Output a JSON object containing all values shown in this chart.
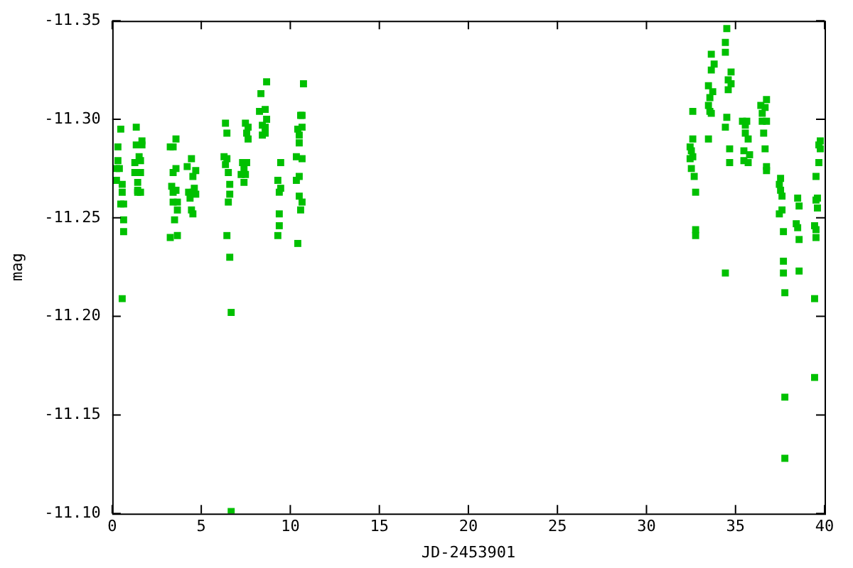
{
  "chart_data": {
    "type": "scatter",
    "xlabel": "JD-2453901",
    "ylabel": "mag",
    "xlim": [
      0,
      40
    ],
    "xticks": [
      0,
      5,
      10,
      15,
      20,
      25,
      30,
      35,
      40
    ],
    "ylim": [
      -11.1,
      -11.35
    ],
    "yticks": [
      {
        "value": -11.1,
        "label": "-11.10"
      },
      -11.15,
      {
        "value": -11.2,
        "label": "-11.20"
      },
      -11.25,
      {
        "value": -11.3,
        "label": "-11.30"
      },
      -11.35
    ],
    "grid": false,
    "legend": false,
    "marker": "square",
    "series": [
      {
        "color": "#00c000",
        "x": [
          0.48,
          0.32,
          0.32,
          0.24,
          0.4,
          0.24,
          0.56,
          0.56,
          0.48,
          0.64,
          0.64,
          0.64,
          0.56,
          1.35,
          1.35,
          1.67,
          1.67,
          1.27,
          1.51,
          1.59,
          1.27,
          1.59,
          1.43,
          1.43,
          1.59,
          1.43,
          3.58,
          3.26,
          3.42,
          3.58,
          3.42,
          3.34,
          3.58,
          3.42,
          3.42,
          3.66,
          3.66,
          3.5,
          3.26,
          3.66,
          4.45,
          4.21,
          4.69,
          4.53,
          4.29,
          4.61,
          4.53,
          4.37,
          4.69,
          4.45,
          4.53,
          6.36,
          6.44,
          6.28,
          6.44,
          6.36,
          6.52,
          6.6,
          6.6,
          6.52,
          6.44,
          6.6,
          6.68,
          6.68,
          7.48,
          7.63,
          7.55,
          7.63,
          7.32,
          7.55,
          7.4,
          7.24,
          7.48,
          7.4,
          8.67,
          8.35,
          8.27,
          8.59,
          8.67,
          8.43,
          8.59,
          8.43,
          8.59,
          9.46,
          9.3,
          9.38,
          9.46,
          9.38,
          9.38,
          9.3,
          10.74,
          10.58,
          10.66,
          10.66,
          10.42,
          10.5,
          10.5,
          10.34,
          10.66,
          10.5,
          10.34,
          10.5,
          10.66,
          10.58,
          10.42,
          32.6,
          32.6,
          32.45,
          32.52,
          32.6,
          32.45,
          32.52,
          32.68,
          32.76,
          32.76,
          32.76,
          33.64,
          33.8,
          33.64,
          33.48,
          33.72,
          33.56,
          33.48,
          33.56,
          33.64,
          33.48,
          34.51,
          34.43,
          34.43,
          34.75,
          34.59,
          34.75,
          34.59,
          34.51,
          34.43,
          34.67,
          34.67,
          34.43,
          36.74,
          36.42,
          36.66,
          36.5,
          36.5,
          36.74,
          36.58,
          36.66,
          36.74,
          36.74,
          35.39,
          35.63,
          35.55,
          35.55,
          35.71,
          35.47,
          35.79,
          35.47,
          35.71,
          37.53,
          37.46,
          37.53,
          37.61,
          37.46,
          37.61,
          37.69,
          37.69,
          37.69,
          37.77,
          37.77,
          37.77,
          38.49,
          38.57,
          38.41,
          38.49,
          38.57,
          38.57,
          39.76,
          39.68,
          39.76,
          39.68,
          39.52,
          39.6,
          39.52,
          39.6,
          39.44,
          39.52,
          39.52,
          39.44,
          39.44
        ],
        "values": [
          -11.295,
          -11.286,
          -11.279,
          -11.275,
          -11.275,
          -11.269,
          -11.267,
          -11.263,
          -11.257,
          -11.257,
          -11.249,
          -11.243,
          -11.209,
          -11.296,
          -11.287,
          -11.289,
          -11.287,
          -11.278,
          -11.281,
          -11.279,
          -11.273,
          -11.273,
          -11.268,
          -11.264,
          -11.263,
          -11.263,
          -11.29,
          -11.286,
          -11.286,
          -11.275,
          -11.273,
          -11.266,
          -11.264,
          -11.263,
          -11.258,
          -11.258,
          -11.254,
          -11.249,
          -11.24,
          -11.241,
          -11.28,
          -11.276,
          -11.274,
          -11.271,
          -11.263,
          -11.265,
          -11.263,
          -11.26,
          -11.262,
          -11.254,
          -11.252,
          -11.298,
          -11.293,
          -11.281,
          -11.28,
          -11.277,
          -11.273,
          -11.267,
          -11.262,
          -11.258,
          -11.241,
          -11.23,
          -11.202,
          -11.101,
          -11.298,
          -11.296,
          -11.293,
          -11.29,
          -11.278,
          -11.278,
          -11.275,
          -11.272,
          -11.272,
          -11.268,
          -11.319,
          -11.313,
          -11.304,
          -11.305,
          -11.3,
          -11.297,
          -11.296,
          -11.292,
          -11.293,
          -11.278,
          -11.269,
          -11.263,
          -11.265,
          -11.252,
          -11.246,
          -11.241,
          -11.318,
          -11.302,
          -11.302,
          -11.296,
          -11.295,
          -11.292,
          -11.288,
          -11.281,
          -11.28,
          -11.271,
          -11.269,
          -11.261,
          -11.258,
          -11.254,
          -11.237,
          -11.304,
          -11.29,
          -11.286,
          -11.284,
          -11.281,
          -11.28,
          -11.275,
          -11.271,
          -11.263,
          -11.244,
          -11.241,
          -11.333,
          -11.328,
          -11.325,
          -11.317,
          -11.314,
          -11.311,
          -11.307,
          -11.304,
          -11.303,
          -11.29,
          -11.346,
          -11.339,
          -11.334,
          -11.324,
          -11.32,
          -11.318,
          -11.315,
          -11.301,
          -11.296,
          -11.285,
          -11.278,
          -11.222,
          -11.31,
          -11.307,
          -11.306,
          -11.303,
          -11.299,
          -11.299,
          -11.293,
          -11.285,
          -11.276,
          -11.274,
          -11.299,
          -11.299,
          -11.297,
          -11.293,
          -11.29,
          -11.284,
          -11.282,
          -11.279,
          -11.278,
          -11.27,
          -11.267,
          -11.264,
          -11.261,
          -11.252,
          -11.254,
          -11.243,
          -11.228,
          -11.222,
          -11.212,
          -11.159,
          -11.128,
          -11.26,
          -11.256,
          -11.247,
          -11.245,
          -11.239,
          -11.223,
          -11.289,
          -11.287,
          -11.285,
          -11.278,
          -11.271,
          -11.26,
          -11.259,
          -11.255,
          -11.246,
          -11.244,
          -11.24,
          -11.209,
          -11.169
        ]
      }
    ]
  }
}
